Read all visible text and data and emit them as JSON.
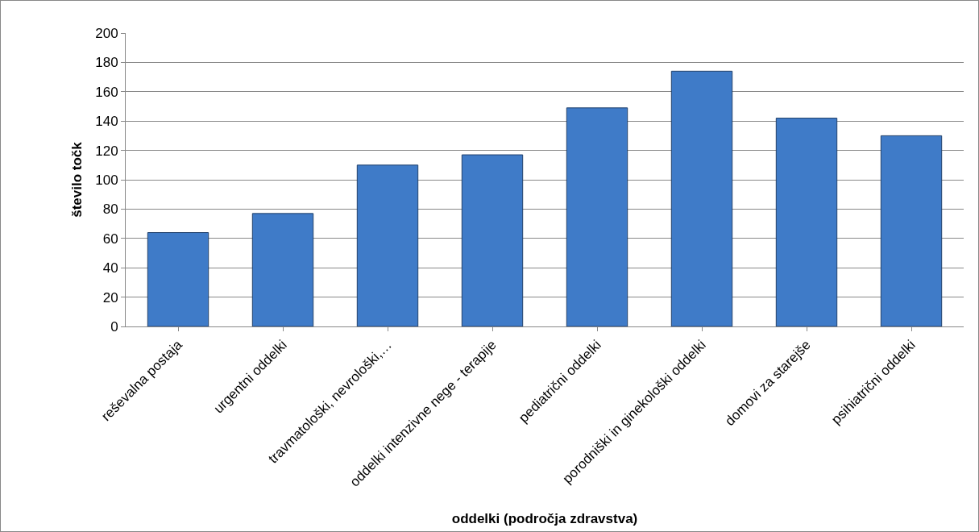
{
  "chart_data": {
    "type": "bar",
    "xlabel": "oddelki (področja zdravstva)",
    "ylabel": "število točk",
    "categories": [
      "reševalna postaja",
      "urgentni oddelki",
      "travmatološki, nevrološki,…",
      "oddelki intenzivne nege - terapije",
      "pediatrični oddelki",
      "porodniški in ginekološki oddelki",
      "domovi za starejše",
      "psihiatrični oddelki"
    ],
    "values": [
      64,
      77,
      110,
      117,
      149,
      174,
      142,
      130
    ],
    "color": "#3f7bc8",
    "ylim": [
      0,
      200
    ],
    "yticks": [
      0,
      20,
      40,
      60,
      80,
      100,
      120,
      140,
      160,
      180,
      200
    ],
    "grid": "y"
  }
}
